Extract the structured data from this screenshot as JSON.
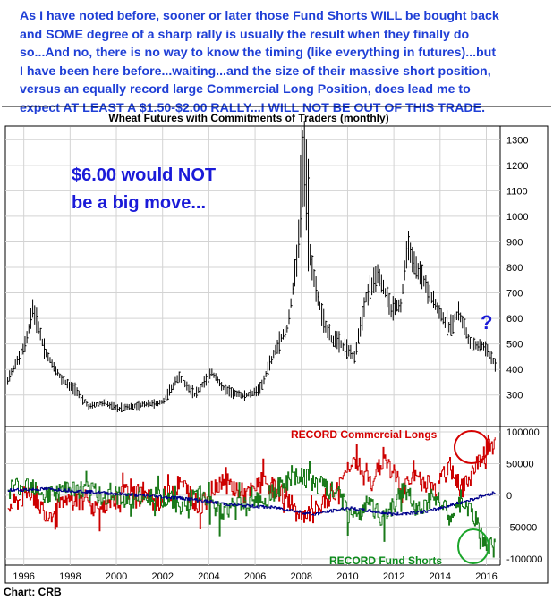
{
  "header": {
    "lines": [
      "As I have noted before, sooner or later those Fund Shorts WILL be bought back",
      "and SOME degree of a sharp rally is usually the result when they finally do",
      "so...And no, there is no way to know the timing (like everything in futures)...but",
      "I have been here before...waiting...and the size of their massive short position,",
      "versus an equally record large Commercial Long Position, does lead me to",
      "expect AT LEAST A $1.50-$2.00 RALLY...I WILL NOT BE OUT OF THIS TRADE."
    ]
  },
  "source_label": "Chart: CRB",
  "colors": {
    "header_blue": "#1f3fd6",
    "price_bar": "#000000",
    "commercial_red": "#cc0000",
    "fund_green": "#1a7a1a",
    "other_blue": "#00008b",
    "grid": "#d3d3d3",
    "annotation_blue": "#1a1ad8",
    "circle_red": "#d40000",
    "circle_green": "#1aa52a"
  },
  "chart_data": [
    {
      "type": "ohlc",
      "title": "Wheat Futures with Commitments of Traders (monthly)",
      "y_ticks": [
        300,
        400,
        500,
        600,
        700,
        800,
        900,
        1000,
        1100,
        1200,
        1300
      ],
      "ylim": [
        180,
        1350
      ],
      "grid": true,
      "annotations": {
        "move_line1": "$6.00 would NOT",
        "move_line2": "be a big move...",
        "question_mark": "?"
      },
      "anchor_points": [
        {
          "x": 1995.3,
          "y": 355
        },
        {
          "x": 1996.1,
          "y": 510
        },
        {
          "x": 1996.4,
          "y": 640
        },
        {
          "x": 1996.9,
          "y": 470
        },
        {
          "x": 1997.6,
          "y": 365
        },
        {
          "x": 1998.2,
          "y": 320
        },
        {
          "x": 1998.8,
          "y": 255
        },
        {
          "x": 1999.5,
          "y": 270
        },
        {
          "x": 2000.1,
          "y": 245
        },
        {
          "x": 2001.0,
          "y": 260
        },
        {
          "x": 2002.0,
          "y": 270
        },
        {
          "x": 2002.7,
          "y": 370
        },
        {
          "x": 2003.4,
          "y": 300
        },
        {
          "x": 2004.1,
          "y": 390
        },
        {
          "x": 2004.7,
          "y": 320
        },
        {
          "x": 2005.5,
          "y": 295
        },
        {
          "x": 2006.2,
          "y": 320
        },
        {
          "x": 2006.9,
          "y": 480
        },
        {
          "x": 2007.4,
          "y": 560
        },
        {
          "x": 2007.8,
          "y": 820
        },
        {
          "x": 2008.1,
          "y": 1150
        },
        {
          "x": 2008.4,
          "y": 820
        },
        {
          "x": 2008.9,
          "y": 600
        },
        {
          "x": 2009.3,
          "y": 520
        },
        {
          "x": 2009.8,
          "y": 490
        },
        {
          "x": 2010.3,
          "y": 450
        },
        {
          "x": 2010.8,
          "y": 680
        },
        {
          "x": 2011.3,
          "y": 780
        },
        {
          "x": 2011.9,
          "y": 630
        },
        {
          "x": 2012.3,
          "y": 650
        },
        {
          "x": 2012.6,
          "y": 880
        },
        {
          "x": 2013.2,
          "y": 760
        },
        {
          "x": 2013.8,
          "y": 650
        },
        {
          "x": 2014.4,
          "y": 560
        },
        {
          "x": 2014.8,
          "y": 620
        },
        {
          "x": 2015.3,
          "y": 500
        },
        {
          "x": 2015.9,
          "y": 490
        },
        {
          "x": 2016.4,
          "y": 420
        }
      ]
    },
    {
      "type": "line",
      "title": "",
      "x_ticks": [
        "1996",
        "1998",
        "2000",
        "2002",
        "2004",
        "2006",
        "2008",
        "2010",
        "2012",
        "2014",
        "2016"
      ],
      "xlim": [
        1995.2,
        2016.6
      ],
      "y_ticks": [
        -100000,
        -50000,
        0,
        50000,
        100000
      ],
      "ylim": [
        -110000,
        107000
      ],
      "grid": true,
      "annotations": {
        "commercial_label": "RECORD Commercial Longs",
        "fund_label": "RECORD Fund Shorts"
      },
      "series": [
        {
          "key": "commercial",
          "color": "#cc0000",
          "anchor_points": [
            {
              "x": 1995.3,
              "y": -20000
            },
            {
              "x": 1996.3,
              "y": 5000
            },
            {
              "x": 1997.0,
              "y": -30000
            },
            {
              "x": 1998.2,
              "y": -5000
            },
            {
              "x": 1999.5,
              "y": -25000
            },
            {
              "x": 2000.6,
              "y": 10000
            },
            {
              "x": 2001.8,
              "y": -10000
            },
            {
              "x": 2002.8,
              "y": 20000
            },
            {
              "x": 2003.6,
              "y": -20000
            },
            {
              "x": 2004.5,
              "y": 25000
            },
            {
              "x": 2005.6,
              "y": 0
            },
            {
              "x": 2006.4,
              "y": 20000
            },
            {
              "x": 2007.3,
              "y": 0
            },
            {
              "x": 2008.0,
              "y": -40000
            },
            {
              "x": 2008.8,
              "y": -20000
            },
            {
              "x": 2009.6,
              "y": 10000
            },
            {
              "x": 2010.2,
              "y": 60000
            },
            {
              "x": 2010.9,
              "y": 20000
            },
            {
              "x": 2011.6,
              "y": 55000
            },
            {
              "x": 2012.4,
              "y": 10000
            },
            {
              "x": 2013.0,
              "y": 30000
            },
            {
              "x": 2013.8,
              "y": 10000
            },
            {
              "x": 2014.4,
              "y": 45000
            },
            {
              "x": 2015.0,
              "y": 10000
            },
            {
              "x": 2015.6,
              "y": 50000
            },
            {
              "x": 2016.0,
              "y": 80000
            },
            {
              "x": 2016.4,
              "y": 80000
            }
          ]
        },
        {
          "key": "fund",
          "color": "#1a7a1a",
          "anchor_points": [
            {
              "x": 1995.3,
              "y": 10000
            },
            {
              "x": 1996.3,
              "y": 20000
            },
            {
              "x": 1997.0,
              "y": 0
            },
            {
              "x": 1998.2,
              "y": 10000
            },
            {
              "x": 1999.5,
              "y": 0
            },
            {
              "x": 2000.6,
              "y": -5000
            },
            {
              "x": 2001.8,
              "y": 0
            },
            {
              "x": 2002.8,
              "y": -15000
            },
            {
              "x": 2003.6,
              "y": 0
            },
            {
              "x": 2004.5,
              "y": -25000
            },
            {
              "x": 2005.6,
              "y": -10000
            },
            {
              "x": 2006.4,
              "y": -5000
            },
            {
              "x": 2007.3,
              "y": 20000
            },
            {
              "x": 2008.0,
              "y": 30000
            },
            {
              "x": 2008.8,
              "y": 15000
            },
            {
              "x": 2009.6,
              "y": 0
            },
            {
              "x": 2010.2,
              "y": -40000
            },
            {
              "x": 2010.9,
              "y": -10000
            },
            {
              "x": 2011.6,
              "y": -40000
            },
            {
              "x": 2012.4,
              "y": 10000
            },
            {
              "x": 2013.0,
              "y": -20000
            },
            {
              "x": 2013.8,
              "y": 0
            },
            {
              "x": 2014.4,
              "y": -35000
            },
            {
              "x": 2015.0,
              "y": -10000
            },
            {
              "x": 2015.6,
              "y": -45000
            },
            {
              "x": 2016.0,
              "y": -80000
            },
            {
              "x": 2016.4,
              "y": -85000
            }
          ]
        },
        {
          "key": "other",
          "color": "#00008b",
          "anchor_points": [
            {
              "x": 1995.3,
              "y": 8000
            },
            {
              "x": 1997.0,
              "y": 10000
            },
            {
              "x": 1999.0,
              "y": 5000
            },
            {
              "x": 2001.0,
              "y": 0
            },
            {
              "x": 2003.0,
              "y": -5000
            },
            {
              "x": 2005.0,
              "y": -15000
            },
            {
              "x": 2007.0,
              "y": -20000
            },
            {
              "x": 2008.5,
              "y": -30000
            },
            {
              "x": 2010.0,
              "y": -20000
            },
            {
              "x": 2012.0,
              "y": -30000
            },
            {
              "x": 2013.5,
              "y": -25000
            },
            {
              "x": 2015.0,
              "y": -10000
            },
            {
              "x": 2016.4,
              "y": 5000
            }
          ]
        }
      ]
    }
  ]
}
